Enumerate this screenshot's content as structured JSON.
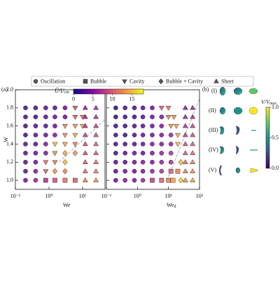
{
  "chart_data": [
    {
      "type": "scatter",
      "panel_label": "(a)",
      "xlabel": "We",
      "ylabel": "W",
      "xscale": "log",
      "xlim": [
        0.1,
        46.4
      ],
      "ylim": [
        0.9,
        2.0
      ],
      "xticks": [
        {
          "value": 0.1,
          "label": "10⁻¹"
        },
        {
          "value": 1,
          "label": "10⁰"
        },
        {
          "value": 10,
          "label": "10¹"
        }
      ],
      "yticks": [
        {
          "value": 1,
          "label": "1.0"
        },
        1.2,
        1.4,
        1.6,
        1.8,
        {
          "value": 2,
          "label": "2.0"
        }
      ],
      "colormap": "plasma",
      "color_label": "Û/U",
      "color_label_sub": "cm",
      "clim": [
        0,
        18
      ],
      "cticks": [
        0,
        5,
        10,
        15
      ],
      "guide": {
        "x": [
          2,
          46
        ],
        "y": [
          1.2,
          1.67
        ]
      },
      "series": [
        {
          "name": "Oscillation",
          "marker": "circle",
          "x": [
            0.2,
            0.4,
            0.8,
            1.5,
            3,
            0.2,
            0.4,
            0.8,
            1.5,
            3,
            0.2,
            0.4,
            0.8,
            1.5,
            0.2,
            0.4,
            0.8,
            1.5,
            0.2,
            0.4,
            0.8,
            0.2,
            0.4,
            0.8,
            0.2,
            0.4,
            0.2,
            0.4,
            0.2,
            0.4
          ],
          "y": [
            1.8,
            1.8,
            1.8,
            1.8,
            1.8,
            1.7,
            1.7,
            1.7,
            1.7,
            1.7,
            1.6,
            1.6,
            1.6,
            1.6,
            1.5,
            1.5,
            1.5,
            1.5,
            1.4,
            1.4,
            1.4,
            1.3,
            1.3,
            1.3,
            1.2,
            1.2,
            1.1,
            1.1,
            1.0,
            1.0
          ],
          "c": [
            2,
            2,
            3,
            3,
            4,
            2,
            2,
            3,
            4,
            4,
            2,
            3,
            3,
            4,
            2,
            3,
            4,
            5,
            3,
            3,
            5,
            3,
            4,
            5,
            3,
            4,
            3,
            5,
            4,
            6
          ]
        },
        {
          "name": "Bubble",
          "marker": "square",
          "x": [
            0.8,
            1.5,
            3,
            6
          ],
          "y": [
            1.0,
            1.0,
            1.0,
            1.0
          ],
          "c": [
            7,
            9,
            11,
            10
          ]
        },
        {
          "name": "Cavity",
          "marker": "triangle-down",
          "x": [
            6,
            6,
            10,
            3,
            6,
            10,
            3,
            6,
            1.5,
            3,
            6,
            1.5,
            0.8,
            1.5,
            0.8
          ],
          "y": [
            1.8,
            1.7,
            1.7,
            1.6,
            1.6,
            1.6,
            1.5,
            1.5,
            1.4,
            1.4,
            1.4,
            1.3,
            1.2,
            1.2,
            1.1
          ],
          "c": [
            9,
            10,
            11,
            12,
            13,
            14,
            13,
            14,
            15,
            14,
            12,
            13,
            11,
            12,
            10
          ]
        },
        {
          "name": "Bubble + Cavity",
          "marker": "diamond",
          "x": [
            3,
            6,
            3,
            1.5,
            3
          ],
          "y": [
            1.3,
            1.3,
            1.2,
            1.1,
            1.1
          ],
          "c": [
            14,
            13,
            15,
            13,
            12
          ]
        },
        {
          "name": "Sheet",
          "marker": "triangle-up",
          "x": [
            12,
            25,
            12,
            25,
            12,
            25,
            12,
            25,
            12,
            25,
            12,
            25,
            12,
            25,
            12,
            25,
            12,
            25
          ],
          "y": [
            1.8,
            1.8,
            1.7,
            1.7,
            1.6,
            1.6,
            1.5,
            1.5,
            1.4,
            1.4,
            1.3,
            1.3,
            1.2,
            1.2,
            1.1,
            1.1,
            1.0,
            1.0
          ],
          "c": [
            5,
            6,
            6,
            7,
            7,
            8,
            8,
            9,
            9,
            10,
            9,
            10,
            10,
            11,
            11,
            12,
            12,
            13
          ]
        }
      ]
    },
    {
      "type": "scatter",
      "xlabel": "We",
      "xlabel_sub": "d",
      "xscale": "log",
      "xlim": [
        0.1,
        100
      ],
      "ylim": [
        0.9,
        2.0
      ],
      "xticks": [
        {
          "value": 0.1,
          "label": "10⁻¹"
        },
        {
          "value": 1,
          "label": "10⁰"
        },
        {
          "value": 10,
          "label": "10¹"
        },
        {
          "value": 100,
          "label": "10²"
        }
      ],
      "guide": {
        "x": [
          9,
          100
        ],
        "y": [
          1.0,
          1.9
        ]
      },
      "series": [
        {
          "marker": "circle",
          "x": [
            0.2,
            0.4,
            0.8,
            1.5,
            3,
            0.2,
            0.4,
            0.8,
            1.5,
            3,
            6,
            0.2,
            0.4,
            0.8,
            1.5,
            3,
            6,
            0.2,
            0.4,
            0.8,
            1.5,
            3,
            6,
            12,
            0.2,
            0.4,
            0.8,
            1.5,
            3,
            6,
            12,
            0.2,
            0.4,
            0.8,
            1.5,
            3,
            6,
            12,
            0.2,
            0.4,
            0.8,
            1.5,
            3,
            6,
            12,
            0.2,
            0.4,
            0.8,
            1.5,
            3,
            6,
            0.2,
            0.4,
            0.8,
            1.5
          ],
          "y": [
            1.8,
            1.8,
            1.8,
            1.8,
            1.8,
            1.7,
            1.7,
            1.7,
            1.7,
            1.7,
            1.7,
            1.6,
            1.6,
            1.6,
            1.6,
            1.6,
            1.6,
            1.5,
            1.5,
            1.5,
            1.5,
            1.5,
            1.5,
            1.5,
            1.4,
            1.4,
            1.4,
            1.4,
            1.4,
            1.4,
            1.4,
            1.3,
            1.3,
            1.3,
            1.3,
            1.3,
            1.3,
            1.3,
            1.2,
            1.2,
            1.2,
            1.2,
            1.2,
            1.2,
            1.2,
            1.1,
            1.1,
            1.1,
            1.1,
            1.1,
            1.1,
            1.0,
            1.0,
            1.0,
            1.0
          ],
          "c": [
            1,
            2,
            2,
            3,
            4,
            1,
            2,
            2,
            3,
            4,
            5,
            2,
            2,
            3,
            3,
            4,
            5,
            2,
            2,
            3,
            4,
            4,
            5,
            6,
            2,
            3,
            3,
            4,
            5,
            5,
            6,
            2,
            3,
            4,
            4,
            5,
            6,
            7,
            3,
            3,
            4,
            5,
            5,
            6,
            7,
            3,
            4,
            4,
            5,
            6,
            7,
            4,
            5,
            5,
            6
          ]
        },
        {
          "marker": "square",
          "x": [
            3,
            6,
            10,
            14,
            12,
            20
          ],
          "y": [
            1.0,
            1.0,
            1.0,
            1.0,
            1.1,
            1.1
          ],
          "c": [
            8,
            10,
            12,
            14,
            10,
            12
          ]
        },
        {
          "marker": "triangle-down",
          "x": [
            6,
            10,
            10,
            15,
            12,
            18,
            20,
            20
          ],
          "y": [
            1.8,
            1.8,
            1.7,
            1.7,
            1.6,
            1.6,
            1.5,
            1.4
          ],
          "c": [
            10,
            11,
            12,
            13,
            13,
            14,
            14,
            15
          ]
        },
        {
          "marker": "diamond",
          "x": [
            25,
            25
          ],
          "y": [
            1.2,
            1.0
          ],
          "c": [
            15,
            16
          ]
        },
        {
          "marker": "triangle-up",
          "x": [
            35,
            60,
            35,
            60,
            35,
            60,
            35,
            60,
            35,
            60,
            35,
            60,
            35,
            60,
            35,
            60,
            35,
            60
          ],
          "y": [
            1.8,
            1.8,
            1.7,
            1.7,
            1.6,
            1.6,
            1.5,
            1.5,
            1.4,
            1.4,
            1.3,
            1.3,
            1.2,
            1.2,
            1.1,
            1.1,
            1.0,
            1.0
          ],
          "c": [
            5,
            6,
            6,
            7,
            7,
            8,
            8,
            9,
            9,
            10,
            10,
            11,
            11,
            12,
            12,
            13,
            13,
            14
          ]
        }
      ]
    }
  ],
  "panel_b": {
    "label": "(b)",
    "rows": [
      "(I)",
      "(II)",
      "(III)",
      "(IV)",
      "(V)"
    ],
    "colorbar": {
      "label": "V/V",
      "label_sub": "max",
      "colormap": "viridis",
      "lim": [
        0,
        1
      ],
      "ticks": [
        {
          "value": 0,
          "label": "0.0"
        },
        {
          "value": 0.5,
          "label": "0.5"
        },
        {
          "value": 1,
          "label": "1.0"
        }
      ]
    }
  }
}
